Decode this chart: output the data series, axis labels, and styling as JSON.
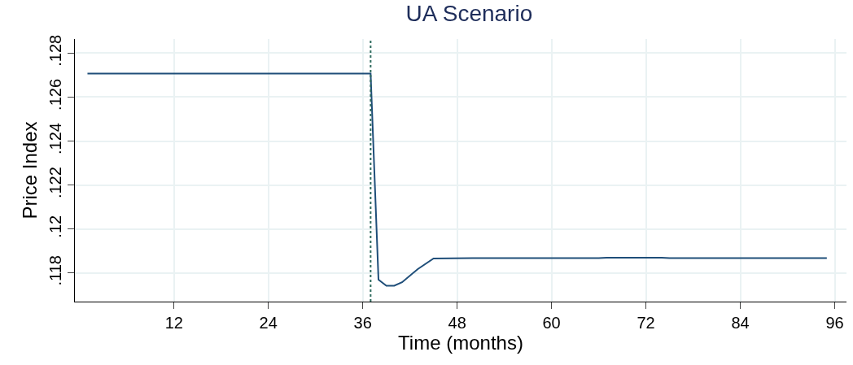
{
  "chart_data": {
    "type": "line",
    "title": "UA Scenario",
    "xlabel": "Time (months)",
    "ylabel": "Price Index",
    "series": [
      {
        "color": "#1f4e79",
        "x": [
          1,
          37,
          38,
          39,
          40,
          41,
          43,
          45,
          50,
          66,
          67,
          74,
          75,
          95
        ],
        "values": [
          0.12707,
          0.12707,
          0.1177,
          0.11742,
          0.11742,
          0.11758,
          0.11818,
          0.11866,
          0.11868,
          0.11868,
          0.1187,
          0.1187,
          0.11868,
          0.11868
        ]
      }
    ],
    "xlim": [
      -0.6,
      97.5
    ],
    "xticks": [
      12,
      24,
      36,
      48,
      60,
      72,
      84,
      96
    ],
    "ylim": [
      0.1167,
      0.12864
    ],
    "yticks": [
      {
        "value": 0.118,
        "label": ".118"
      },
      {
        "value": 0.12,
        "label": ".12"
      },
      {
        "value": 0.122,
        "label": ".122"
      },
      {
        "value": 0.124,
        "label": ".124"
      },
      {
        "value": 0.126,
        "label": ".126"
      },
      {
        "value": 0.128,
        "label": ".128"
      }
    ],
    "ref_lines": [
      {
        "axis": "x",
        "value": 37,
        "color": "#2e6b5e",
        "line_style": "dotted"
      }
    ],
    "grid": true,
    "line_style": "solid",
    "marker": "none"
  }
}
